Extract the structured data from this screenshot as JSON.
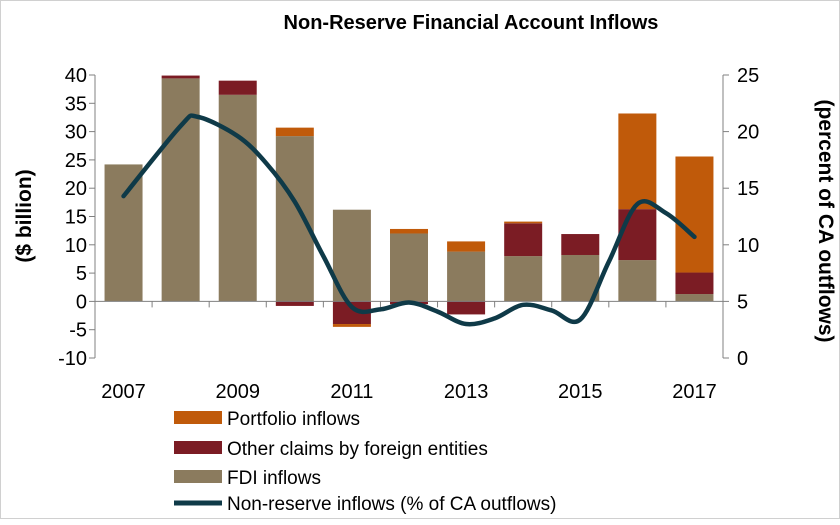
{
  "chart_data": {
    "type": "bar",
    "title": "Non-Reserve Financial Account Inflows",
    "ylabel": "($ billion)",
    "y2label": "(percent of CA outflows)",
    "ylim": [
      -10,
      40
    ],
    "y2lim": [
      0,
      25
    ],
    "yticks": [
      "40",
      "35",
      "30",
      "25",
      "20",
      "15",
      "10",
      "5",
      "0",
      "-5",
      "-10"
    ],
    "y2ticks": [
      "25",
      "20",
      "15",
      "10",
      "5",
      "0"
    ],
    "xtick_labels": [
      "2007",
      "2009",
      "2011",
      "2013",
      "2015",
      "2017"
    ],
    "categories": [
      "2007",
      "2008",
      "2009",
      "2010",
      "2011",
      "2012",
      "2013",
      "2014",
      "2015",
      "2016",
      "2017"
    ],
    "stacked": true,
    "series": [
      {
        "name": "FDI inflows",
        "color": "#8b7b5e",
        "values": [
          24.2,
          39.4,
          36.5,
          29.2,
          16.2,
          12.0,
          8.8,
          8.0,
          8.2,
          7.3,
          1.3
        ]
      },
      {
        "name": "Other claims by foreign entities",
        "color": "#7b1c24",
        "values": [
          0,
          0.5,
          2.5,
          -0.8,
          -4.0,
          -0.5,
          -2.3,
          5.8,
          3.7,
          9.0,
          3.8
        ]
      },
      {
        "name": "Portfolio inflows",
        "color": "#c05a0a",
        "values": [
          0,
          0,
          0,
          1.5,
          -0.5,
          0.8,
          1.8,
          0.3,
          0,
          16.9,
          20.5
        ]
      }
    ],
    "line": {
      "name": "Non-reserve inflows (% of CA outflows)",
      "color": "#0f3a48",
      "axis": "right",
      "x": [
        2007,
        2008,
        2008.3,
        2009,
        2009.5,
        2010,
        2010.5,
        2011,
        2011.5,
        2012,
        2012.5,
        2013,
        2013.5,
        2014,
        2014.5,
        2015,
        2015.5,
        2016,
        2016.5,
        2017
      ],
      "values": [
        14.3,
        20.5,
        21.3,
        19.6,
        17.2,
        13.8,
        9.0,
        4.5,
        4.3,
        4.9,
        4.1,
        3.0,
        3.5,
        4.7,
        4.2,
        3.4,
        8.5,
        13.6,
        12.8,
        10.7
      ]
    },
    "legend_position": "bottom"
  },
  "legend": {
    "portfolio": "Portfolio inflows",
    "other": "Other claims by foreign entities",
    "fdi": "FDI inflows",
    "line": "Non-reserve inflows (% of CA outflows)"
  }
}
